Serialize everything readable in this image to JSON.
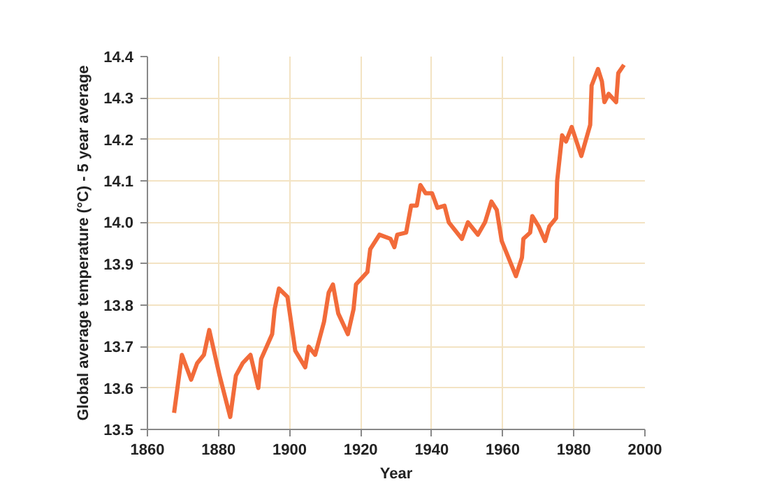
{
  "chart_data": {
    "type": "line",
    "xlabel": "Year",
    "ylabel": "Global average temperature (°C) - 5 year average",
    "x": [
      1867.5,
      1869.7,
      1872.3,
      1874,
      1875.9,
      1877.4,
      1880.3,
      1883.3,
      1884.9,
      1886.8,
      1889,
      1891.2,
      1892,
      1895.1,
      1895.8,
      1897,
      1899.4,
      1901.6,
      1904.4,
      1905.4,
      1907.2,
      1909.7,
      1911,
      1912.2,
      1913.7,
      1916.4,
      1918,
      1918.7,
      1921.9,
      1922.7,
      1925.3,
      1928.4,
      1929.5,
      1930.3,
      1932.8,
      1934.2,
      1935.8,
      1936.8,
      1938.3,
      1940.1,
      1941.6,
      1943.6,
      1944.8,
      1948.5,
      1950.2,
      1953,
      1955,
      1956.8,
      1958.3,
      1959.7,
      1963.7,
      1965.4,
      1965.8,
      1967.7,
      1968.3,
      1970.1,
      1971.9,
      1973.1,
      1975,
      1975.3,
      1976.7,
      1977.8,
      1979.4,
      1982.1,
      1984.6,
      1985,
      1986.8,
      1987.9,
      1988.6,
      1989.8,
      1991.9,
      1992.5,
      1994.1
    ],
    "series": [
      {
        "color": "#f26b3a",
        "values": [
          13.54,
          13.68,
          13.62,
          13.66,
          13.68,
          13.74,
          13.63,
          13.53,
          13.63,
          13.66,
          13.68,
          13.6,
          13.67,
          13.73,
          13.79,
          13.84,
          13.82,
          13.69,
          13.65,
          13.7,
          13.68,
          13.76,
          13.83,
          13.85,
          13.78,
          13.73,
          13.79,
          13.85,
          13.88,
          13.935,
          13.97,
          13.96,
          13.94,
          13.97,
          13.975,
          14.04,
          14.04,
          14.09,
          14.07,
          14.07,
          14.035,
          14.04,
          14.0,
          13.96,
          14.0,
          13.97,
          14.0,
          14.05,
          14.03,
          13.955,
          13.87,
          13.915,
          13.96,
          13.975,
          14.015,
          13.99,
          13.955,
          13.99,
          14.01,
          14.1,
          14.21,
          14.195,
          14.23,
          14.16,
          14.235,
          14.33,
          14.37,
          14.34,
          14.29,
          14.31,
          14.29,
          14.36,
          14.38
        ]
      }
    ],
    "xlim": [
      1860,
      2000
    ],
    "xticks": [
      1860,
      1880,
      1900,
      1920,
      1940,
      1960,
      1980,
      2000
    ],
    "ylim": [
      13.5,
      14.4
    ],
    "yticks": [
      {
        "value": 13.5,
        "label": "13.5"
      },
      {
        "value": 13.6,
        "label": "13.6"
      },
      {
        "value": 13.7,
        "label": "13.7"
      },
      {
        "value": 13.8,
        "label": "13.8"
      },
      {
        "value": 13.9,
        "label": "13.9"
      },
      {
        "value": 14.0,
        "label": "14.0"
      },
      {
        "value": 14.1,
        "label": "14.1"
      },
      {
        "value": 14.2,
        "label": "14.2"
      },
      {
        "value": 14.3,
        "label": "14.3"
      },
      {
        "value": 14.4,
        "label": "14.4"
      }
    ],
    "grid": true,
    "marker": "none",
    "line_style": "solid"
  }
}
